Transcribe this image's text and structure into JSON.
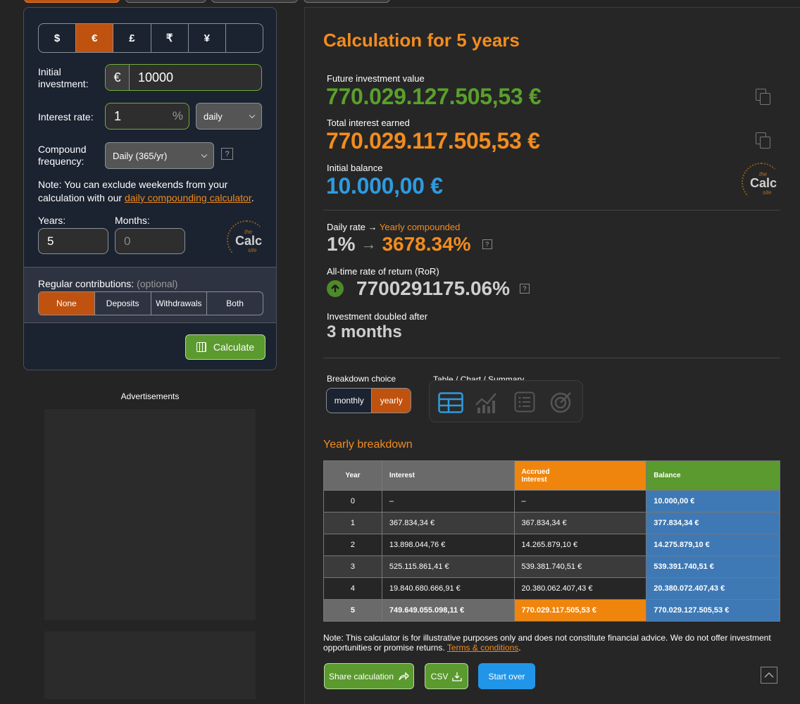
{
  "currencies": [
    "$",
    "€",
    "£",
    "₹",
    "¥",
    ""
  ],
  "active_currency_index": 1,
  "form": {
    "initial_investment_label_1": "Initial",
    "initial_investment_label_2": "investment:",
    "currency_symbol": "€",
    "initial_investment_value": "10000",
    "interest_rate_label": "Interest rate:",
    "interest_rate_value": "1",
    "percent_sign": "%",
    "rate_period": "daily",
    "compound_label_1": "Compound",
    "compound_label_2": "frequency:",
    "compound_value": "Daily (365/yr)",
    "help": "?",
    "note_1": "Note: You can exclude weekends from your",
    "note_2": "calculation with our",
    "note_link": "daily compounding calculator",
    "note_end": ".",
    "years_label": "Years:",
    "years_value": "5",
    "months_label": "Months:",
    "months_placeholder": "0"
  },
  "logo": {
    "the": "the",
    "calc": "Calc",
    "site": "site"
  },
  "contributions": {
    "label": "Regular contributions:",
    "optional": "(optional)",
    "options": [
      "None",
      "Deposits",
      "Withdrawals",
      "Both"
    ],
    "active_index": 0
  },
  "calculate_label": "Calculate",
  "ads_label": "Advertisements",
  "results": {
    "title": "Calculation for 5 years",
    "future_label": "Future investment value",
    "future_value": "770.029.127.505,53 €",
    "interest_label": "Total interest earned",
    "interest_value": "770.029.117.505,53 €",
    "initial_label": "Initial balance",
    "initial_value": "10.000,00 €",
    "rate_label_1": "Daily rate →",
    "rate_label_2": "Yearly compounded",
    "rate_daily": "1%",
    "rate_arrow": "→",
    "rate_yearly": "3678.34%",
    "ror_label": "All-time rate of return (RoR)",
    "ror_value": "7700291175.06%",
    "doubled_label": "Investment doubled after",
    "doubled_value": "3 months"
  },
  "breakdown": {
    "choice_label": "Breakdown choice",
    "monthly": "monthly",
    "yearly": "yearly",
    "view_label": "Table / Chart / Summary",
    "section_title": "Yearly breakdown",
    "headers": {
      "year": "Year",
      "interest": "Interest",
      "accrued_1": "Accrued",
      "accrued_2": "Interest",
      "balance": "Balance"
    },
    "rows": [
      {
        "year": "0",
        "interest": "–",
        "accrued": "–",
        "balance": "10.000,00 €"
      },
      {
        "year": "1",
        "interest": "367.834,34 €",
        "accrued": "367.834,34 €",
        "balance": "377.834,34 €"
      },
      {
        "year": "2",
        "interest": "13.898.044,76 €",
        "accrued": "14.265.879,10 €",
        "balance": "14.275.879,10 €"
      },
      {
        "year": "3",
        "interest": "525.115.861,41 €",
        "accrued": "539.381.740,51 €",
        "balance": "539.391.740,51 €"
      },
      {
        "year": "4",
        "interest": "19.840.680.666,91 €",
        "accrued": "20.380.062.407,43 €",
        "balance": "20.380.072.407,43 €"
      },
      {
        "year": "5",
        "interest": "749.649.055.098,11 €",
        "accrued": "770.029.117.505,53 €",
        "balance": "770.029.127.505,53 €"
      }
    ]
  },
  "disclaimer": {
    "text_1": "Note: This calculator is for illustrative purposes only and does not constitute financial advice. We do not offer investment",
    "text_2": "opportunities or promise returns.",
    "link": "Terms & conditions",
    "end": "."
  },
  "actions": {
    "share": "Share calculation",
    "csv": "CSV",
    "start_over": "Start over"
  },
  "colors": {
    "accent_orange": "#f28c1e",
    "green": "#5aa02c",
    "blue": "#2e9be0",
    "active_tab": "#c0520f"
  }
}
